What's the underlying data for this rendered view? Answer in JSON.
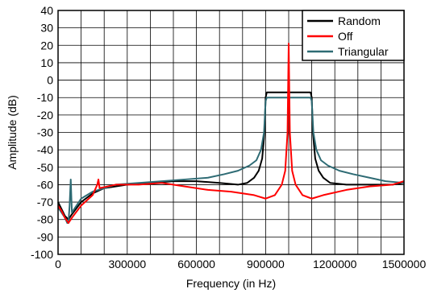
{
  "chart_data": {
    "type": "line",
    "title": "",
    "xlabel": "Frequency (in Hz)",
    "ylabel": "Amplitude (dB)",
    "xlim": [
      0,
      1500000
    ],
    "ylim": [
      -100,
      40
    ],
    "x_ticks": [
      0,
      300000,
      600000,
      900000,
      1200000,
      1500000
    ],
    "x_tick_labels": [
      "0",
      "300000",
      "600000",
      "900000",
      "1200000",
      "1500000"
    ],
    "x_minor_step": 100000,
    "y_ticks": [
      -100,
      -90,
      -80,
      -70,
      -60,
      -50,
      -40,
      -30,
      -20,
      -10,
      0,
      10,
      20,
      30,
      40
    ],
    "y_tick_labels": [
      "-100",
      "-90",
      "-80",
      "-70",
      "-60",
      "-50",
      "-40",
      "-30",
      "-20",
      "-10",
      "0",
      "10",
      "20",
      "30",
      "40"
    ],
    "grid": true,
    "legend_position": "top-right",
    "series": [
      {
        "name": "Random",
        "color": "#000000",
        "points": [
          [
            0,
            -70
          ],
          [
            15000,
            -74
          ],
          [
            30000,
            -78
          ],
          [
            45000,
            -80
          ],
          [
            60000,
            -77
          ],
          [
            100000,
            -70
          ],
          [
            150000,
            -65
          ],
          [
            200000,
            -62
          ],
          [
            300000,
            -60
          ],
          [
            400000,
            -59
          ],
          [
            500000,
            -58
          ],
          [
            600000,
            -58
          ],
          [
            700000,
            -59
          ],
          [
            780000,
            -60
          ],
          [
            820000,
            -59
          ],
          [
            850000,
            -56
          ],
          [
            870000,
            -52
          ],
          [
            885000,
            -45
          ],
          [
            895000,
            -30
          ],
          [
            900000,
            -10
          ],
          [
            905000,
            -7
          ],
          [
            950000,
            -7
          ],
          [
            1000000,
            -7
          ],
          [
            1050000,
            -7
          ],
          [
            1095000,
            -7
          ],
          [
            1100000,
            -10
          ],
          [
            1105000,
            -30
          ],
          [
            1115000,
            -45
          ],
          [
            1130000,
            -52
          ],
          [
            1150000,
            -56
          ],
          [
            1180000,
            -59
          ],
          [
            1250000,
            -60
          ],
          [
            1350000,
            -60
          ],
          [
            1450000,
            -60
          ],
          [
            1500000,
            -59
          ]
        ]
      },
      {
        "name": "Off",
        "color": "#ff0000",
        "points": [
          [
            0,
            -72
          ],
          [
            15000,
            -75
          ],
          [
            30000,
            -79
          ],
          [
            45000,
            -82
          ],
          [
            60000,
            -79
          ],
          [
            100000,
            -72
          ],
          [
            150000,
            -66
          ],
          [
            170000,
            -60
          ],
          [
            175000,
            -57
          ],
          [
            180000,
            -62
          ],
          [
            250000,
            -60
          ],
          [
            350000,
            -60
          ],
          [
            450000,
            -59
          ],
          [
            550000,
            -61
          ],
          [
            650000,
            -63
          ],
          [
            750000,
            -64
          ],
          [
            850000,
            -66
          ],
          [
            900000,
            -68
          ],
          [
            940000,
            -66
          ],
          [
            970000,
            -60
          ],
          [
            985000,
            -52
          ],
          [
            995000,
            -30
          ],
          [
            1000000,
            21
          ],
          [
            1005000,
            -30
          ],
          [
            1015000,
            -52
          ],
          [
            1030000,
            -60
          ],
          [
            1060000,
            -66
          ],
          [
            1100000,
            -68
          ],
          [
            1150000,
            -66
          ],
          [
            1250000,
            -63
          ],
          [
            1350000,
            -61
          ],
          [
            1450000,
            -60
          ],
          [
            1500000,
            -58
          ]
        ]
      },
      {
        "name": "Triangular",
        "color": "#2e6b74",
        "points": [
          [
            0,
            -73
          ],
          [
            15000,
            -76
          ],
          [
            30000,
            -79
          ],
          [
            40000,
            -82
          ],
          [
            45000,
            -82
          ],
          [
            50000,
            -72
          ],
          [
            55000,
            -57
          ],
          [
            60000,
            -76
          ],
          [
            100000,
            -68
          ],
          [
            150000,
            -64
          ],
          [
            250000,
            -60
          ],
          [
            350000,
            -59
          ],
          [
            450000,
            -58
          ],
          [
            550000,
            -57
          ],
          [
            650000,
            -56
          ],
          [
            720000,
            -54
          ],
          [
            780000,
            -52
          ],
          [
            830000,
            -49
          ],
          [
            860000,
            -46
          ],
          [
            880000,
            -40
          ],
          [
            893000,
            -30
          ],
          [
            900000,
            -12
          ],
          [
            905000,
            -10
          ],
          [
            950000,
            -10
          ],
          [
            1000000,
            -10
          ],
          [
            1050000,
            -10
          ],
          [
            1095000,
            -10
          ],
          [
            1100000,
            -12
          ],
          [
            1107000,
            -30
          ],
          [
            1120000,
            -40
          ],
          [
            1140000,
            -46
          ],
          [
            1170000,
            -49
          ],
          [
            1220000,
            -52
          ],
          [
            1280000,
            -54
          ],
          [
            1350000,
            -56
          ],
          [
            1420000,
            -58
          ],
          [
            1500000,
            -59
          ]
        ]
      }
    ]
  }
}
